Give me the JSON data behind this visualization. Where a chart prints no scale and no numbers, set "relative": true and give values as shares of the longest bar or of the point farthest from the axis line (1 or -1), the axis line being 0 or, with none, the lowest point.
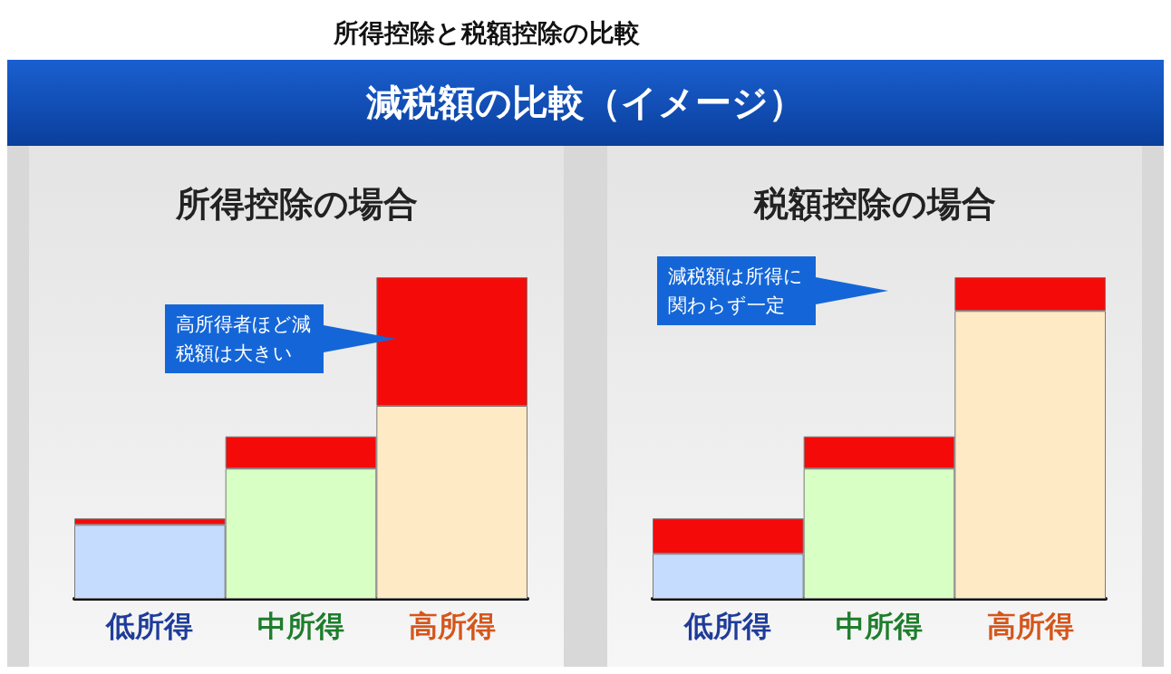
{
  "chart_data": [
    {
      "type": "bar",
      "stacked": true,
      "relative": true,
      "title": "所得控除の場合",
      "categories": [
        "低所得",
        "中所得",
        "高所得"
      ],
      "series": [
        {
          "colors": [
            "#c6dcff",
            "#d8ffc4",
            "#ffeac6"
          ],
          "values": [
            0.23,
            0.405,
            0.6
          ]
        },
        {
          "color": "#f50a0a",
          "values": [
            0.02,
            0.1,
            0.4
          ]
        }
      ],
      "annotations": [
        "所得控除と税額控除の比較",
        "減税額の比較（イメージ）",
        "高所得者ほど減税額は大きい"
      ]
    },
    {
      "type": "bar",
      "stacked": true,
      "relative": true,
      "title": "税額控除の場合",
      "categories": [
        "低所得",
        "中所得",
        "高所得"
      ],
      "series": [
        {
          "colors": [
            "#c6dcff",
            "#d8ffc4",
            "#ffeac6"
          ],
          "values": [
            0.14,
            0.405,
            0.895
          ]
        },
        {
          "color": "#f50a0a",
          "values": [
            0.11,
            0.1,
            0.105
          ]
        }
      ],
      "annotations": [
        "減税額は所得に関わらず一定"
      ]
    }
  ]
}
